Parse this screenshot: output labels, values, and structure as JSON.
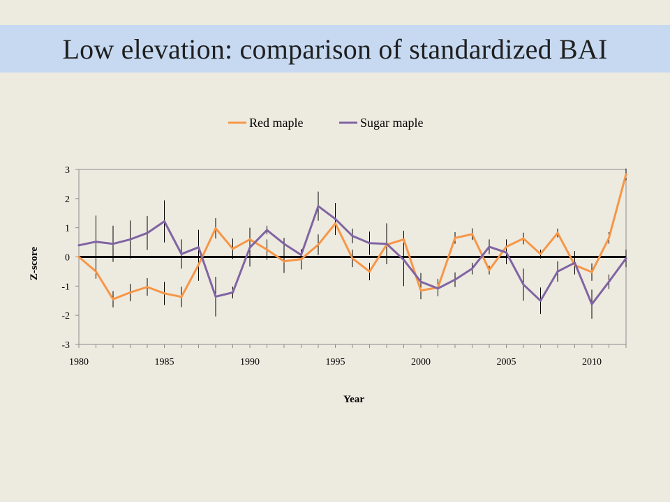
{
  "slide": {
    "title": "Low elevation: comparison of standardized BAI"
  },
  "chart_data": {
    "type": "line",
    "xlabel": "Year",
    "ylabel": "Z-score",
    "xlim": [
      1980,
      2012
    ],
    "ylim": [
      -3,
      3
    ],
    "x_ticks": [
      1980,
      1985,
      1990,
      1995,
      2000,
      2005,
      2010
    ],
    "y_ticks": [
      -3,
      -2,
      -1,
      0,
      1,
      2,
      3
    ],
    "reference_line": 0,
    "legend_position": "top",
    "x": [
      1980,
      1981,
      1982,
      1983,
      1984,
      1985,
      1986,
      1987,
      1988,
      1989,
      1990,
      1991,
      1992,
      1993,
      1994,
      1995,
      1996,
      1997,
      1998,
      1999,
      2000,
      2001,
      2002,
      2003,
      2004,
      2005,
      2006,
      2007,
      2008,
      2009,
      2010,
      2011,
      2012
    ],
    "series": [
      {
        "name": "Red maple",
        "color": "#f79646",
        "values": [
          0.0,
          -0.5,
          -1.45,
          -1.22,
          -1.03,
          -1.25,
          -1.37,
          -0.27,
          0.98,
          0.28,
          0.6,
          0.25,
          -0.15,
          -0.08,
          0.42,
          1.15,
          -0.05,
          -0.5,
          0.42,
          0.6,
          -1.15,
          -1.05,
          0.65,
          0.78,
          -0.45,
          0.35,
          0.63,
          0.1,
          0.82,
          -0.28,
          -0.52,
          0.65,
          2.83
        ],
        "error": [
          0,
          0.25,
          0.28,
          0.3,
          0.3,
          0.4,
          0.35,
          0.55,
          0.35,
          0.35,
          0.4,
          0.35,
          0.4,
          0.35,
          0.35,
          0.35,
          0.3,
          0.3,
          0.3,
          0.3,
          0.3,
          0.3,
          0.2,
          0.2,
          0.15,
          0.25,
          0.2,
          0.15,
          0.15,
          0.3,
          0.3,
          0.2,
          0.2
        ]
      },
      {
        "name": "Sugar maple",
        "color": "#8064a2",
        "values": [
          0.4,
          0.52,
          0.45,
          0.6,
          0.82,
          1.22,
          0.1,
          0.33,
          -1.36,
          -1.22,
          0.32,
          0.92,
          0.45,
          0.07,
          1.74,
          1.3,
          0.72,
          0.47,
          0.45,
          -0.1,
          -0.85,
          -1.08,
          -0.78,
          -0.4,
          0.35,
          0.15,
          -0.95,
          -1.5,
          -0.5,
          -0.2,
          -1.62,
          -0.85,
          -0.05
        ],
        "error": [
          0,
          0.9,
          0.62,
          0.65,
          0.58,
          0.72,
          0.5,
          0.6,
          0.68,
          0.2,
          0.65,
          0.15,
          0.2,
          0.15,
          0.5,
          0.55,
          0.25,
          0.4,
          0.7,
          0.9,
          0.3,
          0.25,
          0.25,
          0.2,
          0.25,
          0.4,
          0.55,
          0.45,
          0.35,
          0.4,
          0.5,
          0.25,
          0.3
        ]
      }
    ]
  }
}
